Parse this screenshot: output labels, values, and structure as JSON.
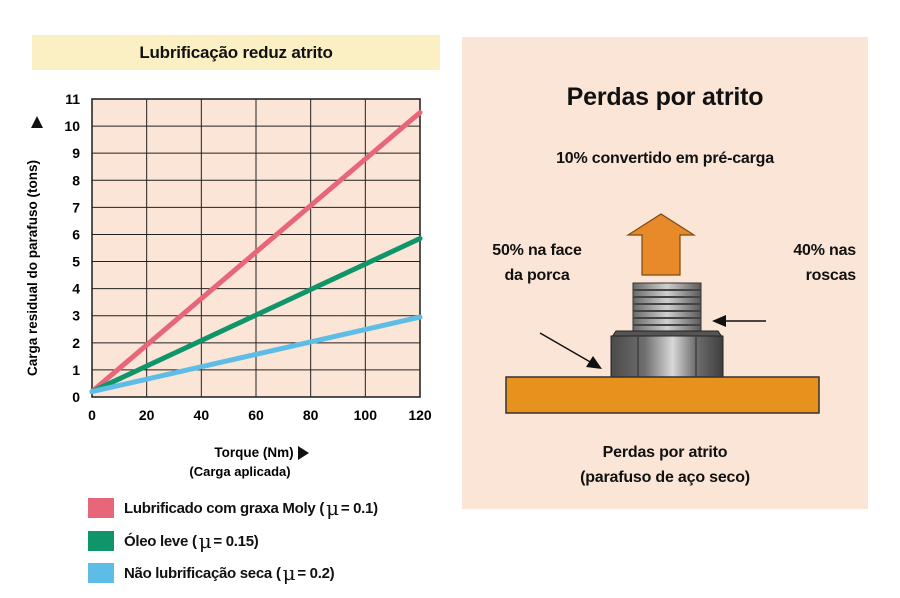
{
  "chart_data": {
    "type": "line",
    "title": "Lubrificação reduz atrito",
    "xlabel": "Torque (Nm)",
    "xlabel_sub": "(Carga aplicada)",
    "ylabel": "Carga residual do parafuso (tons)",
    "xlim": [
      0,
      120
    ],
    "ylim": [
      0,
      11
    ],
    "xticks": [
      0,
      20,
      40,
      60,
      80,
      100,
      120
    ],
    "yticks": [
      0,
      1,
      2,
      3,
      4,
      5,
      6,
      7,
      8,
      9,
      10,
      11
    ],
    "grid": true,
    "legend_position": "bottom",
    "series": [
      {
        "name": "Lubrificado com graxa Moly",
        "mu_value": "= 0.1",
        "color": "#e8667a",
        "x": [
          0,
          120
        ],
        "y": [
          0.2,
          10.5
        ]
      },
      {
        "name": "Óleo leve",
        "mu_value": "= 0.15",
        "color": "#10956b",
        "x": [
          0,
          120
        ],
        "y": [
          0.2,
          5.85
        ]
      },
      {
        "name": "Não lubrificação seca",
        "mu_value": "= 0.2",
        "color": "#5dbde6",
        "x": [
          0,
          120
        ],
        "y": [
          0.2,
          2.95
        ]
      }
    ],
    "mu_symbol": "μ",
    "plot_background": "#fbe5d6"
  },
  "friction_diagram": {
    "title": "Perdas por atrito",
    "top_label": "10% convertido em pré-carga",
    "left_label_line1": "50% na face",
    "left_label_line2": "da porca",
    "right_label_line1": "40% nas",
    "right_label_line2": "roscas",
    "bottom_label_line1": "Perdas por atrito",
    "bottom_label_line2": "(parafuso de aço seco)",
    "colors": {
      "arrow": "#e8892a",
      "plate": "#e8921e",
      "bolt": "#7a7a7a",
      "panel": "#fbe5d6"
    }
  }
}
